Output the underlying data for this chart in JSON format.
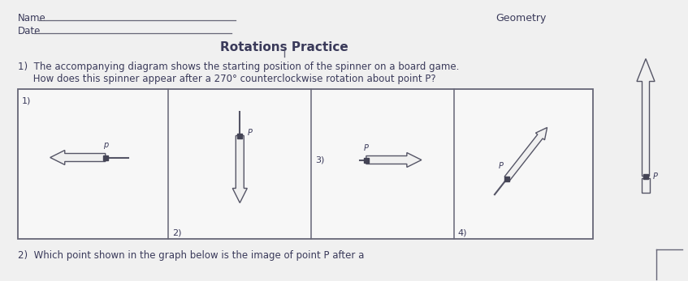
{
  "title": "Rotations Practice",
  "name_label": "Name",
  "date_label": "Date",
  "subject": "Geometry",
  "q1_text": "1)  The accompanying diagram shows the starting position of the spinner on a board game.",
  "q1_text2": "     How does this spinner appear after a 270° counterclockwise rotation about point P?",
  "q2_text": "2)  Which point shown in the graph below is the image of point P after a",
  "bg_color": "#b0b0b0",
  "paper_color": "#f0f0f0",
  "box_fill": "#f5f5f5",
  "text_color": "#3a3a5a",
  "arrow_fill": "#f0f0f0",
  "arrow_edge": "#555566",
  "line_color": "#666677",
  "div_color": "#666677"
}
